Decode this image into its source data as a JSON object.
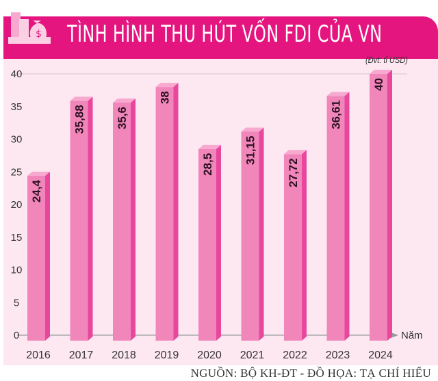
{
  "chart_data": {
    "type": "bar",
    "title": "TÌNH HÌNH THU HÚT VỐN FDI CỦA VN",
    "unit": "(Đvt: tỉ USD)",
    "xlabel": "Năm",
    "ylabel": "",
    "categories": [
      "2016",
      "2017",
      "2018",
      "2019",
      "2020",
      "2021",
      "2022",
      "2023",
      "2024"
    ],
    "values": [
      24.4,
      35.88,
      35.6,
      38,
      28.5,
      31.15,
      27.72,
      36.61,
      40
    ],
    "data_labels": [
      "24,4",
      "35,88",
      "35,6",
      "38",
      "28,5",
      "31,15",
      "27,72",
      "36,61",
      "40"
    ],
    "ylim": [
      0,
      40
    ],
    "yticks": [
      "0",
      "5",
      "10",
      "15",
      "20",
      "25",
      "30",
      "35",
      "40"
    ],
    "grid": false,
    "colors": {
      "bar_front": "#f186ba",
      "bar_side": "#e8479d",
      "bar_top": "#f7a9cf",
      "header": "#e5157f",
      "background": "#fde8f2"
    }
  },
  "source": "NGUỒN: BỘ KH-ĐT - ĐỒ HỌA: TẠ CHÍ HIẾU",
  "icons": {
    "header": "buildings-money-bag-icon"
  }
}
